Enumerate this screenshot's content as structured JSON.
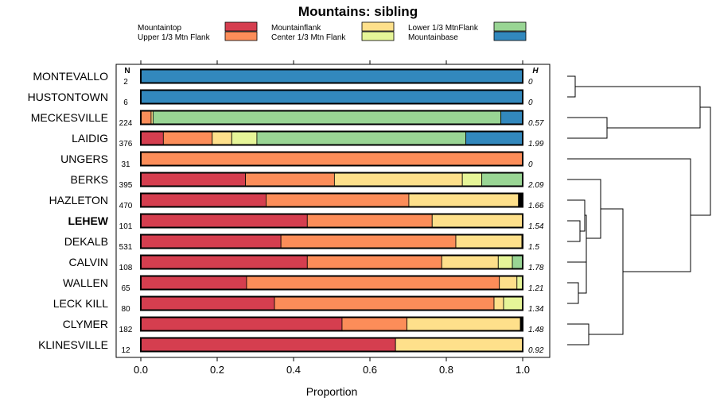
{
  "chart_data": {
    "type": "bar",
    "subtype": "stacked-horizontal-proportion",
    "title": "Mountains: sibling",
    "xlabel": "Proportion",
    "ylabel": "",
    "xlim": [
      0,
      1
    ],
    "xticks": [
      "0.0",
      "0.2",
      "0.4",
      "0.6",
      "0.8",
      "1.0"
    ],
    "n_header": "N",
    "h_header": "H",
    "legend": [
      {
        "name": "Mountaintop",
        "color": "#d53e4f"
      },
      {
        "name": "Upper 1/3 Mtn Flank",
        "color": "#fc8d59"
      },
      {
        "name": "Mountainflank",
        "color": "#fee08b"
      },
      {
        "name": "Center 1/3 Mtn Flank",
        "color": "#e6f598"
      },
      {
        "name": "Lower 1/3 MtnFlank",
        "color": "#99d594"
      },
      {
        "name": "Mountainbase",
        "color": "#3288bd"
      }
    ],
    "extra_segment_color": "#000000",
    "categories": [
      {
        "name": "MONTEVALLO",
        "n": "2",
        "h": "0",
        "bold": false,
        "segments": [
          0,
          0,
          0,
          0,
          0,
          1,
          0
        ]
      },
      {
        "name": "HUSTONTOWN",
        "n": "6",
        "h": "0",
        "bold": false,
        "segments": [
          0,
          0,
          0,
          0,
          0,
          1,
          0
        ]
      },
      {
        "name": "MECKESVILLE",
        "n": "224",
        "h": "0.57",
        "bold": false,
        "segments": [
          0,
          0.027,
          0.005,
          0,
          0.911,
          0.057,
          0
        ]
      },
      {
        "name": "LAIDIG",
        "n": "376",
        "h": "1.99",
        "bold": false,
        "segments": [
          0.059,
          0.128,
          0.051,
          0.066,
          0.547,
          0.149,
          0
        ]
      },
      {
        "name": "UNGERS",
        "n": "31",
        "h": "0",
        "bold": false,
        "segments": [
          0,
          1,
          0,
          0,
          0,
          0,
          0
        ]
      },
      {
        "name": "BERKS",
        "n": "395",
        "h": "2.09",
        "bold": false,
        "segments": [
          0.274,
          0.233,
          0.335,
          0.051,
          0.107,
          0,
          0
        ]
      },
      {
        "name": "HAZLETON",
        "n": "470",
        "h": "1.66",
        "bold": false,
        "segments": [
          0.328,
          0.374,
          0.287,
          0,
          0,
          0,
          0.011
        ]
      },
      {
        "name": "LEHEW",
        "n": "101",
        "h": "1.54",
        "bold": true,
        "segments": [
          0.436,
          0.327,
          0.237,
          0,
          0,
          0,
          0
        ]
      },
      {
        "name": "DEKALB",
        "n": "531",
        "h": "1.5",
        "bold": false,
        "segments": [
          0.367,
          0.458,
          0.173,
          0,
          0,
          0,
          0.002
        ]
      },
      {
        "name": "CALVIN",
        "n": "108",
        "h": "1.78",
        "bold": false,
        "segments": [
          0.436,
          0.352,
          0.148,
          0.037,
          0.027,
          0,
          0
        ]
      },
      {
        "name": "WALLEN",
        "n": "65",
        "h": "1.21",
        "bold": false,
        "segments": [
          0.277,
          0.662,
          0.046,
          0.015,
          0,
          0,
          0
        ]
      },
      {
        "name": "LECK KILL",
        "n": "80",
        "h": "1.34",
        "bold": false,
        "segments": [
          0.35,
          0.575,
          0.025,
          0.05,
          0,
          0,
          0
        ]
      },
      {
        "name": "CLYMER",
        "n": "182",
        "h": "1.48",
        "bold": false,
        "segments": [
          0.527,
          0.17,
          0.297,
          0,
          0,
          0,
          0.006
        ]
      },
      {
        "name": "KLINESVILLE",
        "n": "12",
        "h": "0.92",
        "bold": false,
        "segments": [
          0.667,
          0,
          0.333,
          0,
          0,
          0,
          0
        ]
      }
    ]
  }
}
